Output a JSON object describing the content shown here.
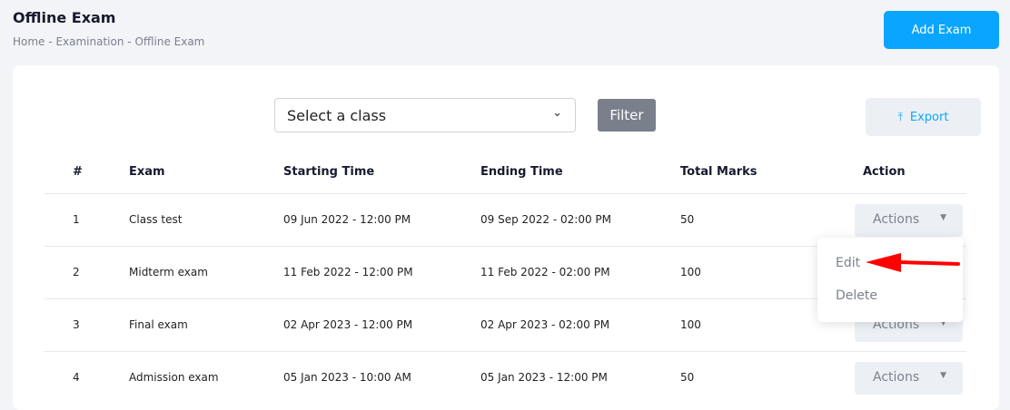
{
  "header": {
    "title": "Offline Exam",
    "breadcrumb": [
      "Home",
      "Examination",
      "Offline Exam"
    ],
    "separator": "-",
    "add_label": "Add Exam"
  },
  "toolbar": {
    "select_value": "Select a class",
    "filter_label": "Filter",
    "export_label": "Export",
    "export_icon": "upload-icon"
  },
  "table": {
    "columns": [
      "#",
      "Exam",
      "Starting Time",
      "Ending Time",
      "Total Marks",
      "Action"
    ],
    "rows": [
      {
        "num": "1",
        "exam": "Class test",
        "start": "09 Jun 2022 - 12:00 PM",
        "end": "09 Sep 2022 - 02:00 PM",
        "marks": "50",
        "action": "Actions"
      },
      {
        "num": "2",
        "exam": "Midterm exam",
        "start": "11 Feb 2022 - 12:00 PM",
        "end": "11 Feb 2022 - 02:00 PM",
        "marks": "100",
        "action": "Actions"
      },
      {
        "num": "3",
        "exam": "Final exam",
        "start": "02 Apr 2023 - 12:00 PM",
        "end": "02 Apr 2023 - 02:00 PM",
        "marks": "100",
        "action": "Actions"
      },
      {
        "num": "4",
        "exam": "Admission exam",
        "start": "05 Jan 2023 - 10:00 AM",
        "end": "05 Jan 2023 - 12:00 PM",
        "marks": "50",
        "action": "Actions"
      }
    ]
  },
  "dropdown": {
    "items": [
      "Edit",
      "Delete"
    ]
  },
  "colors": {
    "accent": "#0aa5ff",
    "arrow": "#ff0000"
  }
}
